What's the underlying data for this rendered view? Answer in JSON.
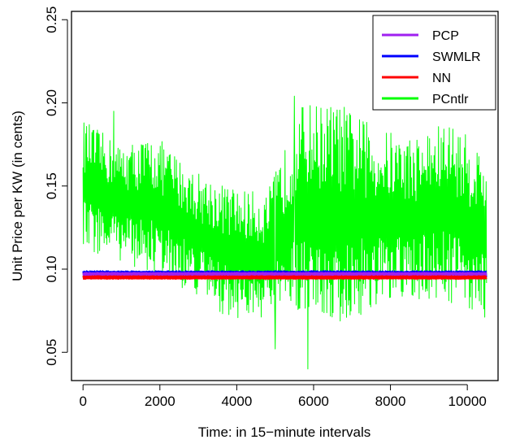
{
  "chart_data": {
    "type": "line",
    "title": "",
    "xlabel": "Time: in 15−minute intervals",
    "ylabel": "Unit Price per KW (in cents)",
    "xlim": [
      -300,
      10800
    ],
    "ylim": [
      0.033,
      0.255
    ],
    "xticks": [
      0,
      2000,
      4000,
      6000,
      8000,
      10000
    ],
    "xtick_labels": [
      "0",
      "2000",
      "4000",
      "6000",
      "8000",
      "10000"
    ],
    "yticks": [
      0.05,
      0.1,
      0.15,
      0.2,
      0.25
    ],
    "ytick_labels": [
      "0.05",
      "0.10",
      "0.15",
      "0.20",
      "0.25"
    ],
    "grid": false,
    "legend_position": "top-right",
    "x_range": [
      0,
      10500
    ],
    "series": [
      {
        "name": "PCP",
        "color": "#a020f0",
        "band_low": [
          0.096,
          0.096,
          0.096,
          0.096,
          0.096,
          0.096,
          0.096,
          0.096,
          0.096,
          0.096,
          0.096,
          0.096
        ],
        "band_high": [
          0.098,
          0.098,
          0.098,
          0.098,
          0.098,
          0.098,
          0.098,
          0.098,
          0.098,
          0.098,
          0.098,
          0.098
        ]
      },
      {
        "name": "SWMLR",
        "color": "#0000ff",
        "band_low": [
          0.095,
          0.095,
          0.095,
          0.095,
          0.095,
          0.095,
          0.095,
          0.095,
          0.095,
          0.095,
          0.095,
          0.095
        ],
        "band_high": [
          0.099,
          0.099,
          0.099,
          0.099,
          0.099,
          0.099,
          0.099,
          0.099,
          0.099,
          0.099,
          0.099,
          0.099
        ]
      },
      {
        "name": "NN",
        "color": "#ff0000",
        "band_low": [
          0.094,
          0.094,
          0.094,
          0.094,
          0.094,
          0.094,
          0.094,
          0.094,
          0.094,
          0.094,
          0.094,
          0.094
        ],
        "band_high": [
          0.096,
          0.096,
          0.096,
          0.096,
          0.096,
          0.096,
          0.096,
          0.096,
          0.096,
          0.096,
          0.096,
          0.096
        ]
      },
      {
        "name": "PCntlr",
        "color": "#00ff00",
        "band_low": [
          0.11,
          0.105,
          0.095,
          0.085,
          0.07,
          0.07,
          0.075,
          0.065,
          0.075,
          0.08,
          0.08,
          0.07
        ],
        "band_high": [
          0.19,
          0.175,
          0.18,
          0.16,
          0.15,
          0.145,
          0.2,
          0.2,
          0.185,
          0.18,
          0.19,
          0.17
        ]
      }
    ],
    "notable_points": [
      {
        "x": 5500,
        "y": 0.204
      },
      {
        "x": 5850,
        "y": 0.04
      },
      {
        "x": 5000,
        "y": 0.052
      },
      {
        "x": 800,
        "y": 0.195
      }
    ]
  }
}
